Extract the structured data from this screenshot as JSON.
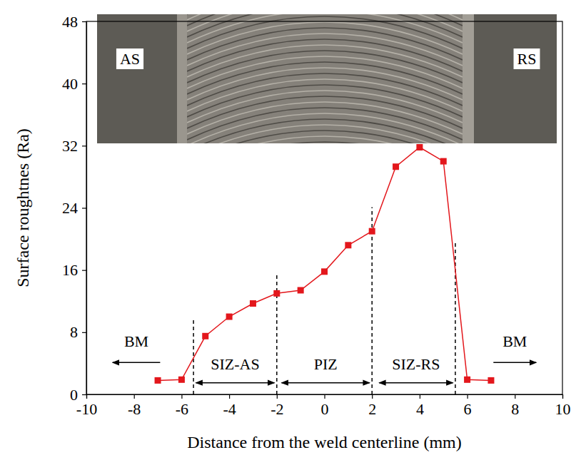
{
  "chart_data": {
    "type": "line",
    "x_label": "Distance from the weld centerline (mm)",
    "y_label": "Surface roughtnes (Ra)",
    "x": [
      -7,
      -6,
      -5,
      -4,
      -3,
      -2,
      -1,
      0,
      1,
      2,
      3,
      4,
      5,
      6,
      7
    ],
    "values": [
      1.8,
      1.9,
      7.5,
      10,
      11.7,
      13,
      13.4,
      15.8,
      19.2,
      21,
      29.3,
      31.8,
      30,
      1.9,
      1.8
    ],
    "color": "#e3171c",
    "marker": "square",
    "xlim": [
      -10,
      10
    ],
    "xticks": [
      -10,
      -8,
      -6,
      -4,
      -2,
      0,
      2,
      4,
      6,
      8,
      10
    ],
    "ylim": [
      0,
      48
    ],
    "yticks": [
      0,
      8,
      16,
      24,
      32,
      40,
      48
    ],
    "grid": false,
    "inset_labels": [
      "AS",
      "RS"
    ],
    "boundaries": [
      {
        "x": -5.5,
        "top": 9.9
      },
      {
        "x": -2,
        "top": 15.4
      },
      {
        "x": 2,
        "top": 24.1
      },
      {
        "x": 5.5,
        "top": 19.5
      }
    ],
    "regions": [
      {
        "label": "BM",
        "from": -6.9,
        "to": -8.9,
        "arrow": "left"
      },
      {
        "label": "SIZ-AS",
        "from": -5.4,
        "to": -2.1,
        "arrow": "both"
      },
      {
        "label": "PIZ",
        "from": -1.8,
        "to": 1.9,
        "arrow": "both"
      },
      {
        "label": "SIZ-RS",
        "from": 2.3,
        "to": 5.4,
        "arrow": "both"
      },
      {
        "label": "BM",
        "from": 7.1,
        "to": 8.9,
        "arrow": "right"
      }
    ]
  }
}
